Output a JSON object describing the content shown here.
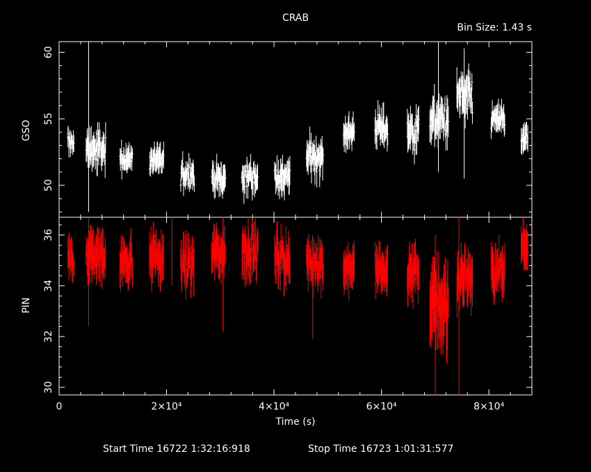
{
  "chart_data": {
    "type": "scatter",
    "title": "CRAB",
    "bin_label": "Bin Size:  1.43  s",
    "xlabel": "Time (s)",
    "xlim": [
      0,
      88000
    ],
    "x_ticks": [
      {
        "value": 0,
        "label": "0"
      },
      {
        "value": 20000,
        "label": "2×10⁴"
      },
      {
        "value": 40000,
        "label": "4×10⁴"
      },
      {
        "value": 60000,
        "label": "6×10⁴"
      },
      {
        "value": 80000,
        "label": "8×10⁴"
      }
    ],
    "footer": {
      "start": "Start Time 16722  1:32:16:918",
      "stop": "Stop Time 16723  1:01:31:577"
    },
    "panels": [
      {
        "name": "GSO",
        "ylabel": "GSO",
        "color": "#ffffff",
        "ylim": [
          47.6,
          60.8
        ],
        "y_ticks": [
          50,
          55,
          60
        ],
        "segments": [
          {
            "x0": 1600,
            "x1": 2800,
            "mean": 53.3,
            "spread": 0.6,
            "err": 0.7
          },
          {
            "x0": 5000,
            "x1": 8700,
            "mean": 52.7,
            "spread": 0.9,
            "err": 1.0
          },
          {
            "x0": 11300,
            "x1": 13700,
            "mean": 52.0,
            "spread": 0.7,
            "err": 0.8
          },
          {
            "x0": 16800,
            "x1": 19500,
            "mean": 51.9,
            "spread": 0.7,
            "err": 0.8
          },
          {
            "x0": 22600,
            "x1": 25200,
            "mean": 50.9,
            "spread": 0.8,
            "err": 0.8
          },
          {
            "x0": 28400,
            "x1": 31000,
            "mean": 50.5,
            "spread": 0.8,
            "err": 0.9
          },
          {
            "x0": 34000,
            "x1": 37000,
            "mean": 50.6,
            "spread": 0.8,
            "err": 0.9
          },
          {
            "x0": 40100,
            "x1": 43000,
            "mean": 50.6,
            "spread": 0.9,
            "err": 1.0
          },
          {
            "x0": 46000,
            "x1": 49200,
            "mean": 52.2,
            "spread": 0.9,
            "err": 1.0
          },
          {
            "x0": 52900,
            "x1": 55000,
            "mean": 54.0,
            "spread": 0.8,
            "err": 0.9
          },
          {
            "x0": 58800,
            "x1": 61200,
            "mean": 54.3,
            "spread": 0.9,
            "err": 1.0
          },
          {
            "x0": 64800,
            "x1": 67000,
            "mean": 54.1,
            "spread": 1.2,
            "err": 1.1
          },
          {
            "x0": 69000,
            "x1": 72500,
            "mean": 55.0,
            "spread": 1.1,
            "err": 1.1
          },
          {
            "x0": 74000,
            "x1": 77000,
            "mean": 56.5,
            "spread": 1.4,
            "err": 1.2
          },
          {
            "x0": 80400,
            "x1": 83000,
            "mean": 55.0,
            "spread": 0.7,
            "err": 0.8
          },
          {
            "x0": 86000,
            "x1": 87300,
            "mean": 53.4,
            "spread": 0.7,
            "err": 0.9
          }
        ],
        "spikes": [
          {
            "x": 5500,
            "lo": 48.0,
            "hi": 60.8
          },
          {
            "x": 70600,
            "lo": 51.0,
            "hi": 60.8
          },
          {
            "x": 75400,
            "lo": 50.5,
            "hi": 60.3
          }
        ]
      },
      {
        "name": "PIN",
        "ylabel": "PIN",
        "color": "#ff0000",
        "ylim": [
          29.7,
          36.7
        ],
        "y_ticks": [
          30,
          32,
          34,
          36
        ],
        "segments": [
          {
            "x0": 1600,
            "x1": 2800,
            "mean": 35.0,
            "spread": 0.5,
            "err": 0.6
          },
          {
            "x0": 5000,
            "x1": 8700,
            "mean": 35.2,
            "spread": 0.6,
            "err": 0.8
          },
          {
            "x0": 11300,
            "x1": 13700,
            "mean": 35.0,
            "spread": 0.5,
            "err": 0.6
          },
          {
            "x0": 16800,
            "x1": 19500,
            "mean": 35.1,
            "spread": 0.6,
            "err": 0.7
          },
          {
            "x0": 22600,
            "x1": 25200,
            "mean": 34.8,
            "spread": 0.6,
            "err": 0.7
          },
          {
            "x0": 28400,
            "x1": 31000,
            "mean": 35.3,
            "spread": 0.6,
            "err": 0.7
          },
          {
            "x0": 34000,
            "x1": 37000,
            "mean": 35.4,
            "spread": 0.6,
            "err": 0.8
          },
          {
            "x0": 40100,
            "x1": 43000,
            "mean": 35.1,
            "spread": 0.6,
            "err": 0.7
          },
          {
            "x0": 46000,
            "x1": 49200,
            "mean": 34.9,
            "spread": 0.6,
            "err": 0.7
          },
          {
            "x0": 52900,
            "x1": 55000,
            "mean": 34.7,
            "spread": 0.5,
            "err": 0.7
          },
          {
            "x0": 58800,
            "x1": 61200,
            "mean": 34.6,
            "spread": 0.5,
            "err": 0.7
          },
          {
            "x0": 64800,
            "x1": 67000,
            "mean": 34.5,
            "spread": 0.6,
            "err": 0.7
          },
          {
            "x0": 69000,
            "x1": 72500,
            "mean": 33.2,
            "spread": 1.0,
            "err": 1.2
          },
          {
            "x0": 74000,
            "x1": 77000,
            "mean": 34.4,
            "spread": 0.6,
            "err": 0.8
          },
          {
            "x0": 80400,
            "x1": 83000,
            "mean": 34.6,
            "spread": 0.6,
            "err": 0.7
          },
          {
            "x0": 86000,
            "x1": 87300,
            "mean": 35.6,
            "spread": 0.5,
            "err": 0.7
          }
        ],
        "spikes": [
          {
            "x": 5500,
            "lo": 32.4,
            "hi": 36.7
          },
          {
            "x": 21000,
            "lo": 34.0,
            "hi": 36.7
          },
          {
            "x": 30500,
            "lo": 32.2,
            "hi": 36.7
          },
          {
            "x": 47200,
            "lo": 31.9,
            "hi": 35.5
          },
          {
            "x": 70000,
            "lo": 29.7,
            "hi": 36.0
          },
          {
            "x": 74400,
            "lo": 29.7,
            "hi": 36.7
          }
        ]
      }
    ]
  }
}
